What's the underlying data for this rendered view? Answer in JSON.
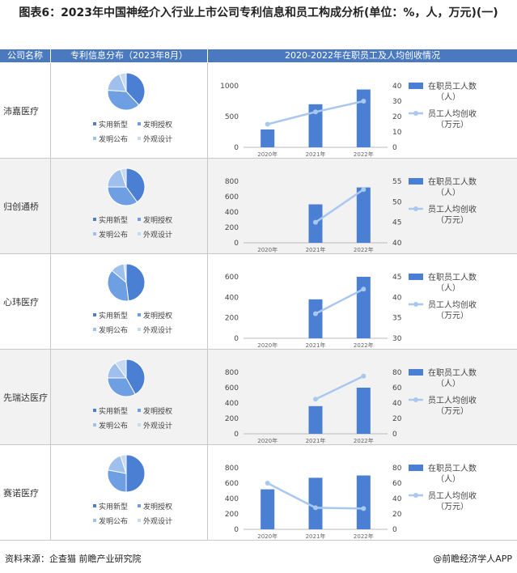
{
  "title": "图表6：2023年中国神经介入行业上市公司专利信息和员工构成分析(单位：%，人，万元)(一)",
  "headers": {
    "company": "公司名称",
    "patent": "专利信息分布（2023年8月）",
    "staff": "2020-2022年在职员工及人均创收情况"
  },
  "pie_legend": [
    "实用新型",
    "发明授权",
    "发明公布",
    "外观设计"
  ],
  "bar_legend": "在职员工人数（人）",
  "line_legend": "员工人均创收（万元）",
  "source": "资料来源：企查猫 前瞻产业研究院",
  "brand": "@前瞻经济学人APP",
  "colors": {
    "utility": "#4a7fd4",
    "invention_granted": "#6f9fe3",
    "invention_published": "#9fc0ec",
    "design": "#c8d9f2",
    "bar": "#4a7fd4",
    "line": "#a9c8ef"
  },
  "chart_data": [
    {
      "company": "沛嘉医疗",
      "pie": {
        "type": "pie",
        "labels": [
          "实用新型",
          "发明授权",
          "发明公布",
          "外观设计"
        ],
        "values": [
          38,
          38,
          18,
          6
        ]
      },
      "combo": {
        "type": "bar",
        "categories": [
          "2020年",
          "2021年",
          "2022年"
        ],
        "bars": [
          290,
          700,
          940
        ],
        "line": [
          15,
          23,
          30
        ],
        "yLeft": [
          0,
          1000
        ],
        "yLeftTicks": [
          0,
          500,
          1000
        ],
        "yRight": [
          0,
          40
        ],
        "yRightTicks": [
          0,
          10,
          20,
          30,
          40
        ]
      }
    },
    {
      "company": "归创通桥",
      "pie": {
        "type": "pie",
        "labels": [
          "实用新型",
          "发明授权",
          "发明公布",
          "外观设计"
        ],
        "values": [
          40,
          35,
          20,
          5
        ]
      },
      "combo": {
        "type": "bar",
        "categories": [
          "2020年",
          "2021年",
          "2022年"
        ],
        "bars": [
          null,
          500,
          720
        ],
        "line": [
          null,
          45,
          53
        ],
        "yLeft": [
          0,
          800
        ],
        "yLeftTicks": [
          0,
          200,
          400,
          600,
          800
        ],
        "yRight": [
          40,
          55
        ],
        "yRightTicks": [
          40,
          45,
          50,
          55
        ]
      }
    },
    {
      "company": "心玮医疗",
      "pie": {
        "type": "pie",
        "labels": [
          "实用新型",
          "发明授权",
          "发明公布",
          "外观设计"
        ],
        "values": [
          48,
          38,
          12,
          2
        ]
      },
      "combo": {
        "type": "bar",
        "categories": [
          "2020年",
          "2021年",
          "2022年"
        ],
        "bars": [
          null,
          380,
          600
        ],
        "line": [
          null,
          36,
          42
        ],
        "yLeft": [
          0,
          600
        ],
        "yLeftTicks": [
          0,
          200,
          400,
          600
        ],
        "yRight": [
          30,
          45
        ],
        "yRightTicks": [
          30,
          35,
          40,
          45
        ]
      }
    },
    {
      "company": "先瑞达医疗",
      "pie": {
        "type": "pie",
        "labels": [
          "实用新型",
          "发明授权",
          "发明公布",
          "外观设计"
        ],
        "values": [
          42,
          33,
          15,
          10
        ]
      },
      "combo": {
        "type": "bar",
        "categories": [
          "2020年",
          "2021年",
          "2022年"
        ],
        "bars": [
          null,
          360,
          600
        ],
        "line": [
          null,
          45,
          75
        ],
        "yLeft": [
          0,
          800
        ],
        "yLeftTicks": [
          0,
          200,
          400,
          600,
          800
        ],
        "yRight": [
          0,
          80
        ],
        "yRightTicks": [
          0,
          20,
          40,
          60,
          80
        ]
      }
    },
    {
      "company": "赛诺医疗",
      "pie": {
        "type": "pie",
        "labels": [
          "实用新型",
          "发明授权",
          "发明公布",
          "外观设计"
        ],
        "values": [
          50,
          28,
          17,
          5
        ]
      },
      "combo": {
        "type": "bar",
        "categories": [
          "2020年",
          "2021年",
          "2022年"
        ],
        "bars": [
          520,
          670,
          700
        ],
        "line": [
          60,
          28,
          27
        ],
        "yLeft": [
          0,
          800
        ],
        "yLeftTicks": [
          0,
          200,
          400,
          600,
          800
        ],
        "yRight": [
          0,
          80
        ],
        "yRightTicks": [
          0,
          20,
          40,
          60,
          80
        ]
      }
    }
  ]
}
